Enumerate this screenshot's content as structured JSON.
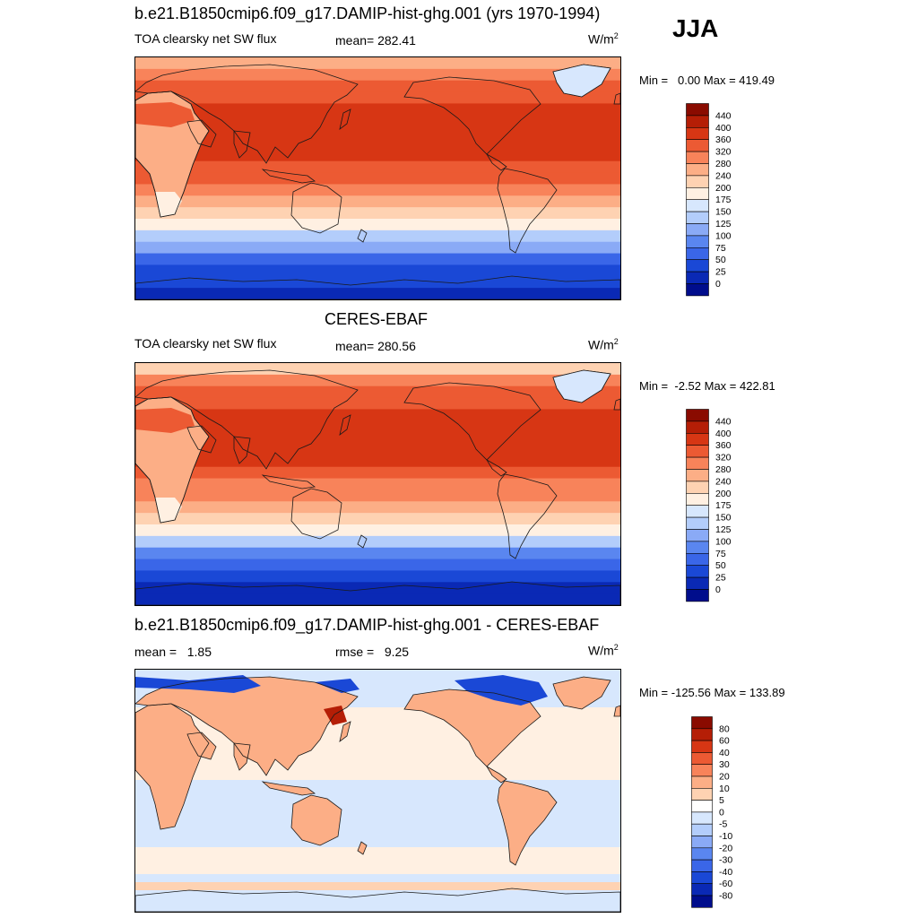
{
  "season": "JJA",
  "panels": [
    {
      "title": "b.e21.B1850cmip6.f09_g17.DAMIP-hist-ghg.001 (yrs 1970-1994)",
      "left_label": "TOA clearsky net SW flux",
      "center_label": "mean= 282.41",
      "units_base": "W/m",
      "units_exp": "2",
      "minmax": "Min =   0.00 Max = 419.49"
    },
    {
      "title": "CERES-EBAF",
      "left_label": "TOA clearsky net SW flux",
      "center_label": "mean= 280.56",
      "units_base": "W/m",
      "units_exp": "2",
      "minmax": "Min =  -2.52 Max = 422.81"
    },
    {
      "title": "b.e21.B1850cmip6.f09_g17.DAMIP-hist-ghg.001 - CERES-EBAF",
      "left_label": "mean =   1.85",
      "center_label": "rmse =   9.25",
      "units_base": "W/m",
      "units_exp": "2",
      "minmax": "Min = -125.56 Max = 133.89"
    }
  ],
  "chart_data": [
    {
      "type": "heatmap",
      "title": "b.e21.B1850cmip6.f09_g17.DAMIP-hist-ghg.001 (yrs 1970-1994)",
      "variable": "TOA clearsky net SW flux",
      "units": "W/m2",
      "mean": 282.41,
      "min": 0.0,
      "max": 419.49,
      "colorbar_levels": [
        "0",
        "25",
        "50",
        "75",
        "100",
        "125",
        "150",
        "175",
        "200",
        "240",
        "280",
        "320",
        "360",
        "400",
        "440"
      ],
      "colorbar_colors": [
        "#000d8c",
        "#0a29b5",
        "#1a48d6",
        "#3a66e8",
        "#5a86f0",
        "#8aaaf6",
        "#b3cdfb",
        "#d7e7fd",
        "#fff0e2",
        "#fed2b2",
        "#fcae86",
        "#f8835a",
        "#ec5a33",
        "#d73614",
        "#b51e06",
        "#8a0b00"
      ],
      "zonal_profile_north_to_south": [
        240,
        300,
        330,
        350,
        370,
        390,
        395,
        385,
        370,
        345,
        320,
        290,
        255,
        220,
        180,
        140,
        100,
        70,
        45,
        25,
        10
      ]
    },
    {
      "type": "heatmap",
      "title": "CERES-EBAF",
      "variable": "TOA clearsky net SW flux",
      "units": "W/m2",
      "mean": 280.56,
      "min": -2.52,
      "max": 422.81,
      "colorbar_levels": [
        "0",
        "25",
        "50",
        "75",
        "100",
        "125",
        "150",
        "175",
        "200",
        "240",
        "280",
        "320",
        "360",
        "400",
        "440"
      ],
      "colorbar_colors": [
        "#000d8c",
        "#0a29b5",
        "#1a48d6",
        "#3a66e8",
        "#5a86f0",
        "#8aaaf6",
        "#b3cdfb",
        "#d7e7fd",
        "#fff0e2",
        "#fed2b2",
        "#fcae86",
        "#f8835a",
        "#ec5a33",
        "#d73614",
        "#b51e06",
        "#8a0b00"
      ],
      "zonal_profile_north_to_south": [
        235,
        295,
        325,
        345,
        365,
        385,
        390,
        380,
        365,
        340,
        315,
        285,
        250,
        215,
        175,
        135,
        95,
        65,
        40,
        20,
        5
      ]
    },
    {
      "type": "heatmap",
      "title": "b.e21.B1850cmip6.f09_g17.DAMIP-hist-ghg.001 - CERES-EBAF",
      "variable": "difference",
      "units": "W/m2",
      "mean": 1.85,
      "rmse": 9.25,
      "min": -125.56,
      "max": 133.89,
      "colorbar_levels": [
        "-80",
        "-60",
        "-40",
        "-30",
        "-20",
        "-10",
        "-5",
        "0",
        "5",
        "10",
        "20",
        "30",
        "40",
        "60",
        "80"
      ],
      "colorbar_colors": [
        "#000d8c",
        "#0a29b5",
        "#1a48d6",
        "#3a66e8",
        "#5a86f0",
        "#8aaaf6",
        "#b3cdfb",
        "#d7e7fd",
        "#ffffff",
        "#fed2b2",
        "#fcae86",
        "#f8835a",
        "#ec5a33",
        "#d73614",
        "#b51e06",
        "#8a0b00"
      ]
    }
  ]
}
